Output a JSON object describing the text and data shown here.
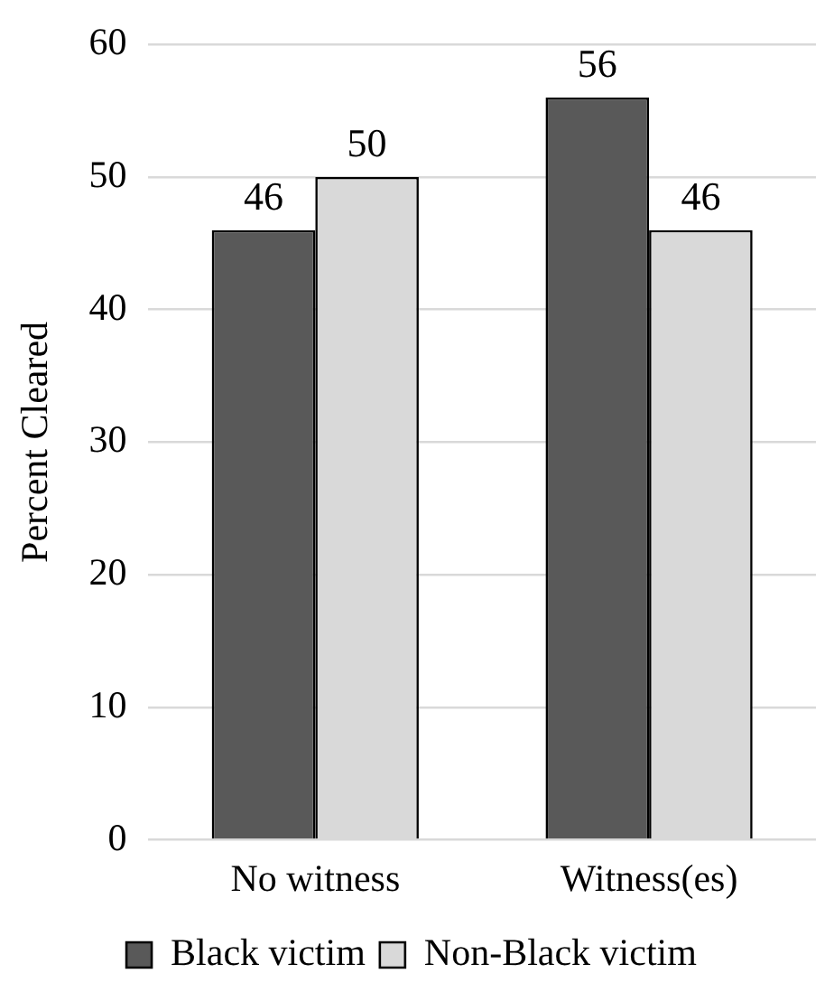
{
  "chart_data": {
    "type": "bar",
    "ylabel": "Percent Cleared",
    "categories": [
      "No witness",
      "Witness(es)"
    ],
    "series": [
      {
        "name": "Black victim",
        "color": "#595959",
        "values": [
          46,
          56
        ]
      },
      {
        "name": "Non-Black victim",
        "color": "#d9d9d9",
        "values": [
          50,
          46
        ]
      }
    ],
    "ylim": [
      0,
      60
    ],
    "yticks": [
      0,
      10,
      20,
      30,
      40,
      50,
      60
    ],
    "grid": "y",
    "legend": "bottom",
    "data_labels": true
  }
}
